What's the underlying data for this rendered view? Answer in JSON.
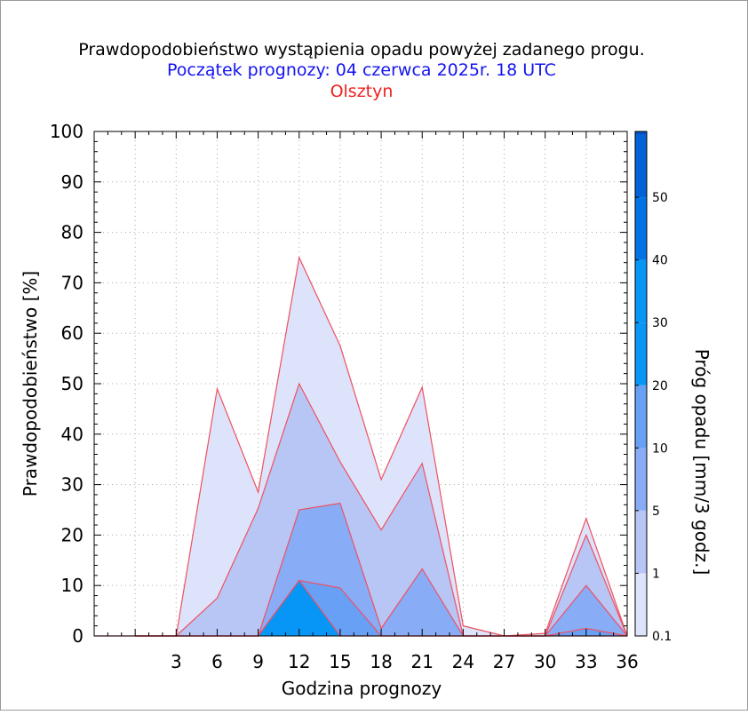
{
  "chart_data": {
    "type": "area",
    "title": "Prawdopodobieństwo wystąpienia opadu powyżej zadanego progu.",
    "subtitle": "Początek prognozy: 04 czerwca 2025r. 18 UTC",
    "location": "Olsztyn",
    "xlabel": "Godzina prognozy",
    "ylabel": "Prawdopodobieństwo [%]",
    "colorbar_label": "Próg opadu [mm/3 godz.]",
    "x": [
      0,
      3,
      6,
      9,
      12,
      15,
      18,
      21,
      24,
      27,
      30,
      33,
      36
    ],
    "xticks": [
      "3",
      "6",
      "9",
      "12",
      "15",
      "18",
      "21",
      "24",
      "27",
      "30",
      "33",
      "36"
    ],
    "xlim": [
      -3,
      36
    ],
    "ylim": [
      0,
      100
    ],
    "yticks": [
      "0",
      "10",
      "20",
      "30",
      "40",
      "50",
      "60",
      "70",
      "80",
      "90",
      "100"
    ],
    "grid": true,
    "series": [
      {
        "name": "0.1",
        "color": "#dde3fa",
        "values": [
          0,
          0,
          49,
          28.5,
          75,
          57.5,
          31,
          49.3,
          2,
          0,
          0.5,
          23.3,
          0
        ]
      },
      {
        "name": "1",
        "color": "#b8c6f6",
        "values": [
          0,
          0,
          7.5,
          25.3,
          50,
          34.5,
          21,
          34.2,
          0,
          0,
          0,
          20,
          0
        ]
      },
      {
        "name": "5",
        "color": "#88acf6",
        "values": [
          0,
          0,
          0,
          0,
          25,
          26.3,
          1.5,
          13.3,
          0,
          0,
          0,
          10,
          0
        ]
      },
      {
        "name": "10",
        "color": "#68a0f6",
        "values": [
          0,
          0,
          0,
          0,
          11,
          9.5,
          0,
          0,
          0,
          0,
          0,
          1.5,
          0
        ]
      },
      {
        "name": "20",
        "color": "#0896f6",
        "values": [
          0,
          0,
          0,
          0,
          11,
          0,
          0,
          0,
          0,
          0,
          0,
          0,
          0
        ]
      }
    ],
    "colorbar": {
      "labels": [
        "0.1",
        "1",
        "5",
        "10",
        "20",
        "30",
        "40",
        "50"
      ],
      "colors": [
        "#dde3fa",
        "#b8c6f6",
        "#88acf6",
        "#68a0f6",
        "#0896f6",
        "#0696f4",
        "#0074e6",
        "#0262d8",
        "#0250c8",
        "#0240b0"
      ]
    },
    "outline_color": "#f05060"
  }
}
